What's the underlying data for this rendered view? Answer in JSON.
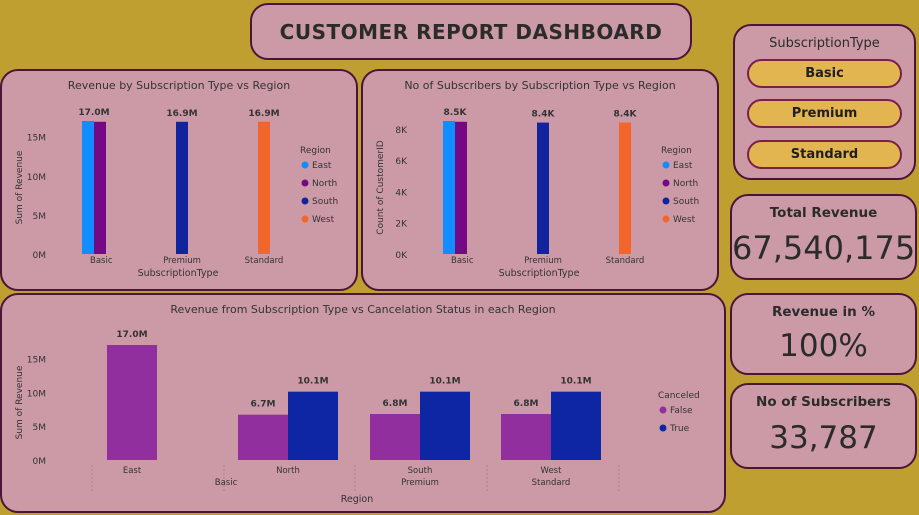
{
  "dashboard": {
    "title": "CUSTOMER REPORT DASHBOARD"
  },
  "slicer": {
    "title": "SubscriptionType",
    "options": [
      "Basic",
      "Premium",
      "Standard"
    ]
  },
  "cards": {
    "total_revenue": {
      "label": "Total Revenue",
      "value": "67,540,175"
    },
    "revenue_pct": {
      "label": "Revenue in %",
      "value": "100%"
    },
    "subscribers": {
      "label": "No of Subscribers",
      "value": "33,787"
    }
  },
  "colors": {
    "East": "#118dff",
    "North": "#750985",
    "South": "#12239e",
    "West": "#f2662b",
    "False": "#912f9e",
    "True": "#0e26a4"
  },
  "chart_data": [
    {
      "type": "bar",
      "title": "Revenue by Subscription Type vs Region",
      "xlabel": "SubscriptionType",
      "ylabel": "Sum of Revenue",
      "ylim": [
        0,
        17000000
      ],
      "yticks": [
        "0M",
        "5M",
        "10M",
        "15M"
      ],
      "ytick_values": [
        0,
        5000000,
        10000000,
        15000000
      ],
      "legend_title": "Region",
      "legend": [
        "East",
        "North",
        "South",
        "West"
      ],
      "legend_position": "right",
      "categories": [
        "Basic",
        "Premium",
        "Standard"
      ],
      "bars": [
        {
          "category": "Basic",
          "series": "East",
          "value": 17000000
        },
        {
          "category": "Basic",
          "series": "North",
          "value": 16900000
        },
        {
          "category": "Premium",
          "series": "South",
          "value": 16900000
        },
        {
          "category": "Standard",
          "series": "West",
          "value": 16900000
        }
      ],
      "data_labels": [
        {
          "category": "Basic",
          "text": "17.0M"
        },
        {
          "category": "Premium",
          "text": "16.9M"
        },
        {
          "category": "Standard",
          "text": "16.9M"
        }
      ]
    },
    {
      "type": "bar",
      "title": "No of Subscribers by Subscription Type vs Region",
      "xlabel": "SubscriptionType",
      "ylabel": "Count of CustomerID",
      "ylim": [
        0,
        8500
      ],
      "yticks": [
        "0K",
        "2K",
        "4K",
        "6K",
        "8K"
      ],
      "ytick_values": [
        0,
        2000,
        4000,
        6000,
        8000
      ],
      "legend_title": "Region",
      "legend": [
        "East",
        "North",
        "South",
        "West"
      ],
      "legend_position": "right",
      "categories": [
        "Basic",
        "Premium",
        "Standard"
      ],
      "bars": [
        {
          "category": "Basic",
          "series": "East",
          "value": 8500
        },
        {
          "category": "Basic",
          "series": "North",
          "value": 8450
        },
        {
          "category": "Premium",
          "series": "South",
          "value": 8400
        },
        {
          "category": "Standard",
          "series": "West",
          "value": 8400
        }
      ],
      "data_labels": [
        {
          "category": "Basic",
          "text": "8.5K"
        },
        {
          "category": "Premium",
          "text": "8.4K"
        },
        {
          "category": "Standard",
          "text": "8.4K"
        }
      ]
    },
    {
      "type": "bar",
      "title": "Revenue from Subscription Type vs Cancelation Status in each Region",
      "xlabel": "Region",
      "ylabel": "Sum of Revenue",
      "ylim": [
        0,
        17000000
      ],
      "yticks": [
        "0M",
        "5M",
        "10M",
        "15M"
      ],
      "ytick_values": [
        0,
        5000000,
        10000000,
        15000000
      ],
      "legend_title": "Canceled",
      "legend": [
        "False",
        "True"
      ],
      "legend_position": "right",
      "groups": [
        {
          "region": "East",
          "subscription": "Basic",
          "false": 17000000,
          "true": null,
          "false_label": "17.0M",
          "true_label": ""
        },
        {
          "region": "North",
          "subscription": "",
          "false": 6700000,
          "true": 10100000,
          "false_label": "6.7M",
          "true_label": "10.1M"
        },
        {
          "region": "South",
          "subscription": "Premium",
          "false": 6800000,
          "true": 10100000,
          "false_label": "6.8M",
          "true_label": "10.1M"
        },
        {
          "region": "West",
          "subscription": "Standard",
          "false": 6800000,
          "true": 10100000,
          "false_label": "6.8M",
          "true_label": "10.1M"
        }
      ],
      "second_level_labels": [
        {
          "text": "Basic",
          "position": "between East and North"
        },
        {
          "text": "Premium",
          "position": "under South"
        },
        {
          "text": "Standard",
          "position": "under West"
        }
      ]
    }
  ]
}
